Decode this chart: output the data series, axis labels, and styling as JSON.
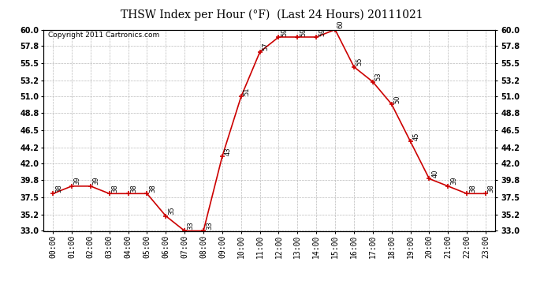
{
  "title": "THSW Index per Hour (°F)  (Last 24 Hours) 20111021",
  "copyright": "Copyright 2011 Cartronics.com",
  "hours": [
    "00:00",
    "01:00",
    "02:00",
    "03:00",
    "04:00",
    "05:00",
    "06:00",
    "07:00",
    "08:00",
    "09:00",
    "10:00",
    "11:00",
    "12:00",
    "13:00",
    "14:00",
    "15:00",
    "16:00",
    "17:00",
    "18:00",
    "19:00",
    "20:00",
    "21:00",
    "22:00",
    "23:00"
  ],
  "values": [
    38,
    39,
    39,
    38,
    38,
    38,
    35,
    33,
    33,
    43,
    51,
    57,
    59,
    59,
    59,
    60,
    55,
    53,
    50,
    45,
    40,
    39,
    38,
    38
  ],
  "line_color": "#cc0000",
  "marker_color": "#cc0000",
  "bg_color": "#ffffff",
  "grid_color": "#bbbbbb",
  "title_fontsize": 10,
  "copyright_fontsize": 6.5,
  "label_fontsize": 6,
  "tick_fontsize": 7,
  "ylim_min": 33.0,
  "ylim_max": 60.0,
  "yticks": [
    33.0,
    35.2,
    37.5,
    39.8,
    42.0,
    44.2,
    46.5,
    48.8,
    51.0,
    53.2,
    55.5,
    57.8,
    60.0
  ]
}
